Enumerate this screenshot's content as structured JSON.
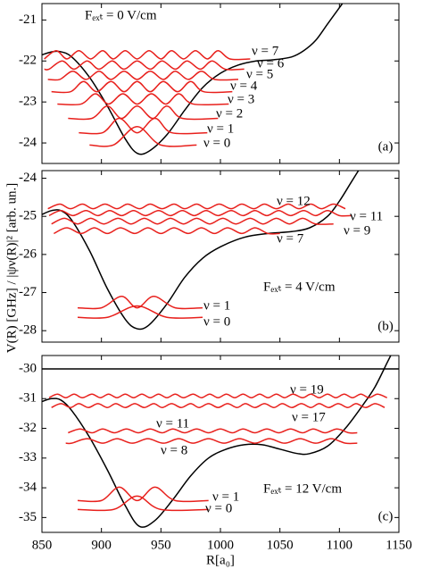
{
  "chart_data": [
    {
      "type": "line",
      "annotation": "Fₑₓₜ = 0 V/cm",
      "panel_label": "(a)",
      "xlim": [
        850,
        1150
      ],
      "ylim": [
        -24.5,
        -20.6
      ],
      "yticks": [
        -24,
        -23,
        -22,
        -21
      ],
      "series": [
        {
          "color": "#000000",
          "x": [
            850,
            858,
            865,
            875,
            890,
            905,
            920,
            930,
            940,
            955,
            970,
            985,
            1000,
            1015,
            1030,
            1045,
            1060,
            1070,
            1080,
            1090,
            1100,
            1105
          ],
          "values": [
            -21.85,
            -21.78,
            -21.77,
            -21.9,
            -22.4,
            -23.1,
            -23.9,
            -24.25,
            -24.2,
            -23.8,
            -23.2,
            -22.65,
            -22.3,
            -22.1,
            -22.0,
            -21.97,
            -21.9,
            -21.75,
            -21.5,
            -21.1,
            -20.7,
            -20.5
          ]
        },
        {
          "name": "ν = 0",
          "color": "#e8201c",
          "x": [
            890,
            910,
            930,
            950,
            980
          ],
          "values": [
            -24.05,
            -24.05,
            -23.6,
            -24.05,
            -24.05
          ]
        },
        {
          "name": "ν = 1",
          "color": "#e8201c",
          "x": [
            881,
            901,
            915,
            930,
            945,
            959,
            989
          ],
          "values": [
            -23.75,
            -23.75,
            -23.4,
            -23.75,
            -23.4,
            -23.75,
            -23.75
          ]
        },
        {
          "name": "ν = 2",
          "color": "#e8201c",
          "x": [
            872,
            892,
            905,
            917,
            930,
            943,
            955,
            968,
            998
          ],
          "values": [
            -23.4,
            -23.4,
            -23.1,
            -23.4,
            -23.1,
            -23.4,
            -23.1,
            -23.4,
            -23.4
          ]
        },
        {
          "name": "ν = 3",
          "color": "#e8201c",
          "x": [
            863,
            883,
            895,
            906,
            918,
            930,
            942,
            954,
            965,
            977,
            1007
          ],
          "values": [
            -23.05,
            -23.05,
            -22.8,
            -23.05,
            -22.8,
            -23.05,
            -22.8,
            -23.05,
            -22.8,
            -23.05,
            -23.05
          ]
        },
        {
          "name": "ν = 4",
          "color": "#e8201c",
          "x": [
            858,
            874,
            885,
            896,
            908,
            919,
            930,
            941,
            952,
            964,
            975,
            986,
            1010
          ],
          "values": [
            -22.75,
            -22.75,
            -22.5,
            -22.75,
            -22.5,
            -22.75,
            -22.5,
            -22.75,
            -22.5,
            -22.75,
            -22.5,
            -22.75,
            -22.75
          ]
        },
        {
          "name": "ν = 5",
          "color": "#e8201c",
          "x": [
            855,
            865,
            876,
            887,
            898,
            908,
            919,
            930,
            941,
            952,
            962,
            973,
            984,
            995,
            1015
          ],
          "values": [
            -22.45,
            -22.45,
            -22.25,
            -22.45,
            -22.25,
            -22.45,
            -22.25,
            -22.45,
            -22.25,
            -22.45,
            -22.25,
            -22.45,
            -22.25,
            -22.45,
            -22.45
          ]
        },
        {
          "name": "ν = 6",
          "color": "#e8201c",
          "x": [
            852,
            856,
            867,
            877,
            888,
            898,
            909,
            919,
            930,
            941,
            951,
            962,
            972,
            983,
            993,
            1004,
            1020
          ],
          "values": [
            -22.2,
            -22.2,
            -22.0,
            -22.2,
            -22.0,
            -22.2,
            -22.0,
            -22.2,
            -22.0,
            -22.2,
            -22.0,
            -22.2,
            -22.0,
            -22.2,
            -22.0,
            -22.2,
            -22.2
          ]
        },
        {
          "name": "ν = 7",
          "color": "#e8201c",
          "x": [
            852,
            862,
            871,
            881,
            891,
            901,
            910,
            920,
            930,
            940,
            950,
            959,
            969,
            979,
            989,
            998,
            1008,
            1025
          ],
          "values": [
            -21.95,
            -21.75,
            -21.95,
            -21.75,
            -21.95,
            -21.75,
            -21.95,
            -21.75,
            -21.95,
            -21.75,
            -21.95,
            -21.75,
            -21.95,
            -21.75,
            -21.95,
            -21.75,
            -21.95,
            -21.95
          ]
        }
      ]
    },
    {
      "type": "line",
      "annotation": "Fₑₓₜ = 4 V/cm",
      "panel_label": "(b)",
      "ylabel": "V(R) [GHz] / |ψν(R)|² [arb. un.]",
      "xlim": [
        850,
        1150
      ],
      "ylim": [
        -28.3,
        -23.8
      ],
      "yticks": [
        -28,
        -27,
        -26,
        -25,
        -24
      ],
      "series": [
        {
          "color": "#000000",
          "x": [
            850,
            858,
            866,
            875,
            890,
            905,
            920,
            930,
            940,
            955,
            970,
            985,
            1000,
            1020,
            1040,
            1060,
            1075,
            1090,
            1100,
            1110,
            1120
          ],
          "values": [
            -24.95,
            -24.85,
            -24.85,
            -25.1,
            -25.9,
            -26.9,
            -27.7,
            -27.95,
            -27.85,
            -27.3,
            -26.6,
            -26.1,
            -25.8,
            -25.55,
            -25.45,
            -25.4,
            -25.3,
            -25.0,
            -24.6,
            -24.1,
            -23.6
          ]
        },
        {
          "name": "ν = 0",
          "color": "#e8201c",
          "x": [
            880,
            905,
            930,
            955,
            985
          ],
          "values": [
            -27.65,
            -27.65,
            -27.35,
            -27.65,
            -27.65
          ]
        },
        {
          "name": "ν = 1",
          "color": "#e8201c",
          "x": [
            880,
            900,
            917,
            930,
            944,
            962,
            985
          ],
          "values": [
            -27.4,
            -27.4,
            -27.1,
            -27.4,
            -27.1,
            -27.4,
            -27.4
          ]
        },
        {
          "name": "ν = 7",
          "color": "#e8201c",
          "x": [
            860,
            871,
            883,
            894,
            905,
            916,
            928,
            939,
            950,
            961,
            973,
            984,
            995,
            1006,
            1018,
            1029,
            1040,
            1050
          ],
          "values": [
            -25.45,
            -25.3,
            -25.45,
            -25.3,
            -25.45,
            -25.3,
            -25.45,
            -25.3,
            -25.45,
            -25.3,
            -25.45,
            -25.3,
            -25.45,
            -25.3,
            -25.45,
            -25.3,
            -25.45,
            -25.45
          ]
        },
        {
          "name": "ν = 9",
          "color": "#e8201c",
          "x": [
            858,
            869,
            880,
            891,
            902,
            914,
            925,
            936,
            947,
            958,
            969,
            980,
            991,
            1002,
            1013,
            1025,
            1036,
            1047,
            1058,
            1069,
            1080,
            1095
          ],
          "values": [
            -25.2,
            -25.05,
            -25.2,
            -25.05,
            -25.2,
            -25.05,
            -25.2,
            -25.05,
            -25.2,
            -25.05,
            -25.2,
            -25.05,
            -25.2,
            -25.05,
            -25.2,
            -25.05,
            -25.2,
            -25.05,
            -25.2,
            -25.05,
            -25.2,
            -25.2
          ]
        },
        {
          "name": "ν = 11",
          "color": "#e8201c",
          "x": [
            856,
            866,
            876,
            887,
            897,
            907,
            917,
            927,
            937,
            948,
            958,
            968,
            978,
            988,
            998,
            1009,
            1019,
            1029,
            1039,
            1049,
            1059,
            1070,
            1080,
            1090,
            1100,
            1110
          ],
          "values": [
            -24.98,
            -24.85,
            -24.98,
            -24.85,
            -24.98,
            -24.85,
            -24.98,
            -24.85,
            -24.98,
            -24.85,
            -24.98,
            -24.85,
            -24.98,
            -24.85,
            -24.98,
            -24.85,
            -24.98,
            -24.85,
            -24.98,
            -24.85,
            -24.98,
            -24.85,
            -24.98,
            -24.85,
            -24.98,
            -24.98
          ]
        },
        {
          "name": "ν = 12",
          "color": "#e8201c",
          "x": [
            855,
            865,
            874,
            884,
            893,
            903,
            913,
            922,
            932,
            941,
            951,
            961,
            970,
            980,
            989,
            999,
            1009,
            1018,
            1028,
            1037,
            1047,
            1057,
            1066,
            1076,
            1085,
            1095,
            1105
          ],
          "values": [
            -24.8,
            -24.68,
            -24.8,
            -24.68,
            -24.8,
            -24.68,
            -24.8,
            -24.68,
            -24.8,
            -24.68,
            -24.8,
            -24.68,
            -24.8,
            -24.68,
            -24.8,
            -24.68,
            -24.8,
            -24.68,
            -24.8,
            -24.68,
            -24.8,
            -24.68,
            -24.8,
            -24.68,
            -24.8,
            -24.68,
            -24.8
          ]
        }
      ]
    },
    {
      "type": "line",
      "annotation": "Fₑₓₜ = 12 V/cm",
      "panel_label": "(c)",
      "xlabel": "R[a₀]",
      "xlim": [
        850,
        1150
      ],
      "xticks": [
        850,
        900,
        950,
        1000,
        1050,
        1100,
        1150
      ],
      "ylim": [
        -35.5,
        -29.55
      ],
      "yticks": [
        -35,
        -34,
        -33,
        -32,
        -31,
        -30
      ],
      "series": [
        {
          "color": "#000000",
          "x": [
            850,
            858,
            866,
            875,
            890,
            905,
            920,
            932,
            945,
            960,
            975,
            990,
            1005,
            1020,
            1035,
            1050,
            1065,
            1075,
            1090,
            1105,
            1120,
            1130,
            1140,
            1145
          ],
          "values": [
            -31.1,
            -31.0,
            -31.05,
            -31.4,
            -32.3,
            -33.4,
            -34.6,
            -35.3,
            -35.1,
            -34.4,
            -33.6,
            -33.0,
            -32.7,
            -32.55,
            -32.55,
            -32.7,
            -32.85,
            -32.85,
            -32.6,
            -32.0,
            -31.2,
            -30.6,
            -29.8,
            -29.4
          ]
        },
        {
          "color": "#000000",
          "x": [
            850,
            1150
          ],
          "values": [
            -30,
            -30
          ]
        },
        {
          "name": "ν = 0",
          "color": "#e8201c",
          "x": [
            880,
            910,
            930,
            950,
            990
          ],
          "values": [
            -34.73,
            -34.73,
            -34.28,
            -34.73,
            -34.73
          ]
        },
        {
          "name": "ν = 1",
          "color": "#e8201c",
          "x": [
            880,
            900,
            915,
            930,
            945,
            962,
            990
          ],
          "values": [
            -34.43,
            -34.43,
            -33.98,
            -34.43,
            -33.98,
            -34.43,
            -34.43
          ]
        },
        {
          "name": "ν = 8",
          "color": "#e8201c",
          "x": [
            870,
            875,
            888,
            901,
            913,
            926,
            939,
            952,
            965,
            977,
            990,
            1003,
            1016,
            1029,
            1041,
            1054,
            1067,
            1080,
            1093,
            1105,
            1115
          ],
          "values": [
            -32.5,
            -32.5,
            -32.35,
            -32.5,
            -32.35,
            -32.5,
            -32.35,
            -32.5,
            -32.35,
            -32.5,
            -32.35,
            -32.5,
            -32.35,
            -32.5,
            -32.35,
            -32.5,
            -32.35,
            -32.5,
            -32.35,
            -32.5,
            -32.5
          ]
        },
        {
          "name": "ν = 11",
          "color": "#e8201c",
          "x": [
            872,
            882,
            892,
            901,
            911,
            921,
            931,
            941,
            951,
            960,
            970,
            980,
            990,
            1000,
            1010,
            1019,
            1029,
            1039,
            1049,
            1059,
            1069,
            1078,
            1088,
            1098,
            1108,
            1115
          ],
          "values": [
            -32.15,
            -32.02,
            -32.15,
            -32.02,
            -32.15,
            -32.02,
            -32.15,
            -32.02,
            -32.15,
            -32.02,
            -32.15,
            -32.02,
            -32.15,
            -32.02,
            -32.15,
            -32.02,
            -32.15,
            -32.02,
            -32.15,
            -32.02,
            -32.15,
            -32.02,
            -32.15,
            -32.02,
            -32.15,
            -32.15
          ]
        },
        {
          "name": "ν = 17",
          "color": "#e8201c",
          "x": [
            858,
            866,
            874,
            881,
            889,
            897,
            905,
            912,
            920,
            928,
            936,
            944,
            951,
            959,
            967,
            975,
            982,
            990,
            998,
            1006,
            1014,
            1021,
            1029,
            1037,
            1045,
            1052,
            1060,
            1068,
            1076,
            1083,
            1091,
            1099,
            1107,
            1114,
            1122,
            1130,
            1138
          ],
          "values": [
            -31.3,
            -31.17,
            -31.3,
            -31.17,
            -31.3,
            -31.17,
            -31.3,
            -31.17,
            -31.3,
            -31.17,
            -31.3,
            -31.17,
            -31.3,
            -31.17,
            -31.3,
            -31.17,
            -31.3,
            -31.17,
            -31.3,
            -31.17,
            -31.3,
            -31.17,
            -31.3,
            -31.17,
            -31.3,
            -31.17,
            -31.3,
            -31.17,
            -31.3,
            -31.17,
            -31.3,
            -31.17,
            -31.3,
            -31.17,
            -31.3,
            -31.17,
            -31.3
          ]
        },
        {
          "name": "ν = 19",
          "color": "#e8201c",
          "x": [
            856,
            863,
            870,
            877,
            884,
            892,
            899,
            906,
            913,
            920,
            927,
            934,
            941,
            948,
            955,
            962,
            969,
            977,
            984,
            991,
            998,
            1005,
            1012,
            1019,
            1026,
            1033,
            1040,
            1047,
            1054,
            1061,
            1069,
            1076,
            1083,
            1090,
            1097,
            1104,
            1111,
            1118,
            1125,
            1132,
            1140
          ],
          "values": [
            -30.97,
            -30.85,
            -30.97,
            -30.85,
            -30.97,
            -30.85,
            -30.97,
            -30.85,
            -30.97,
            -30.85,
            -30.97,
            -30.85,
            -30.97,
            -30.85,
            -30.97,
            -30.85,
            -30.97,
            -30.85,
            -30.97,
            -30.85,
            -30.97,
            -30.85,
            -30.97,
            -30.85,
            -30.97,
            -30.85,
            -30.97,
            -30.85,
            -30.97,
            -30.85,
            -30.97,
            -30.85,
            -30.97,
            -30.85,
            -30.97,
            -30.85,
            -30.97,
            -30.85,
            -30.97,
            -30.85,
            -30.97
          ]
        }
      ]
    }
  ]
}
